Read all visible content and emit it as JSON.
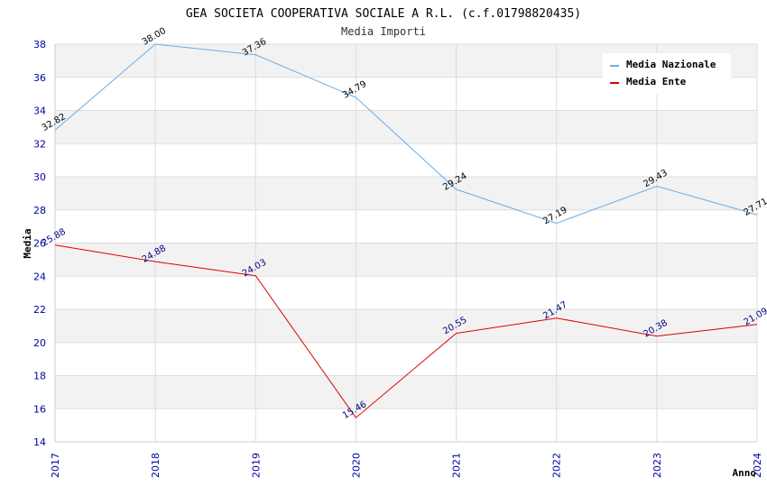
{
  "chart_data": {
    "type": "line",
    "title": "GEA SOCIETA COOPERATIVA SOCIALE A R.L. (c.f.01798820435)",
    "subtitle": "Media Importi",
    "xlabel": "Anno",
    "ylabel": "Media",
    "x": [
      "2017",
      "2018",
      "2019",
      "2020",
      "2021",
      "2022",
      "2023",
      "2024"
    ],
    "ylim": [
      14,
      38
    ],
    "yticks": [
      14,
      16,
      18,
      20,
      22,
      24,
      26,
      28,
      30,
      32,
      34,
      36,
      38
    ],
    "grid": true,
    "legend_position": "top-right",
    "series": [
      {
        "name": "Media Nazionale",
        "color": "#6aaee8",
        "label_color": "#000000",
        "values": [
          32.82,
          38.0,
          37.36,
          34.79,
          29.24,
          27.19,
          29.43,
          27.71
        ],
        "labels": [
          "32.82",
          "38.00",
          "37.36",
          "34.79",
          "29.24",
          "27.19",
          "29.43",
          "27.71"
        ]
      },
      {
        "name": "Media Ente",
        "color": "#e00000",
        "label_color": "#000080",
        "values": [
          25.88,
          24.88,
          24.03,
          15.46,
          20.55,
          21.47,
          20.38,
          21.09
        ],
        "labels": [
          "25.88",
          "24.88",
          "24.03",
          "15.46",
          "20.55",
          "21.47",
          "20.38",
          "21.09"
        ]
      }
    ]
  }
}
